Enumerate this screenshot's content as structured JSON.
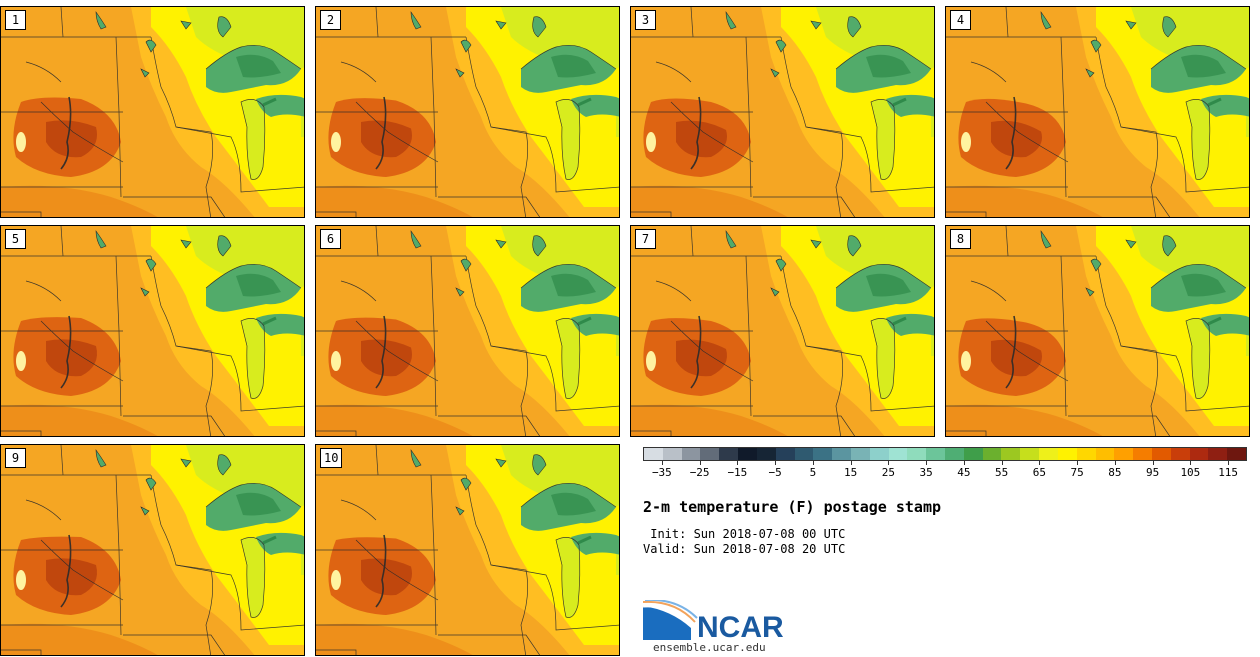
{
  "title": "2-m temperature (F) postage stamp",
  "init": " Init: Sun 2018-07-08 00 UTC",
  "valid": "Valid: Sun 2018-07-08 20 UTC",
  "logo_text": "NCAR",
  "website": "ensemble.ucar.edu",
  "members": [
    "1",
    "2",
    "3",
    "4",
    "5",
    "6",
    "7",
    "8",
    "9",
    "10"
  ],
  "colorbar": {
    "tick_labels": [
      "−35",
      "−25",
      "−15",
      "−5",
      "5",
      "15",
      "25",
      "35",
      "45",
      "55",
      "65",
      "75",
      "85",
      "95",
      "105",
      "115"
    ],
    "range": [
      -40,
      120
    ],
    "colors": [
      "#d7dde3",
      "#b9c0c8",
      "#8c95a0",
      "#626c79",
      "#2e3a4b",
      "#101a2a",
      "#162535",
      "#25405a",
      "#2f5a70",
      "#3b7285",
      "#5b95a0",
      "#79b3b5",
      "#8dd0cb",
      "#9fe3d3",
      "#8fdcbc",
      "#6cc59a",
      "#4fae74",
      "#3f9e4a",
      "#6bb02e",
      "#9cc821",
      "#c6df1c",
      "#eef01a",
      "#fff200",
      "#ffd700",
      "#ffbe00",
      "#ffa000",
      "#f57d00",
      "#e25a00",
      "#c93e0a",
      "#ad2a10",
      "#8f1f12",
      "#6e170f"
    ]
  },
  "colors": {
    "base_orange": "#f5a623",
    "hot_core": "#d9580f",
    "very_hot": "#b8400c",
    "warm": "#ffbe22",
    "yellow": "#fff200",
    "lime": "#d8ec1e",
    "lake": "#52ab6a",
    "lake_dark": "#2f8a4a"
  }
}
